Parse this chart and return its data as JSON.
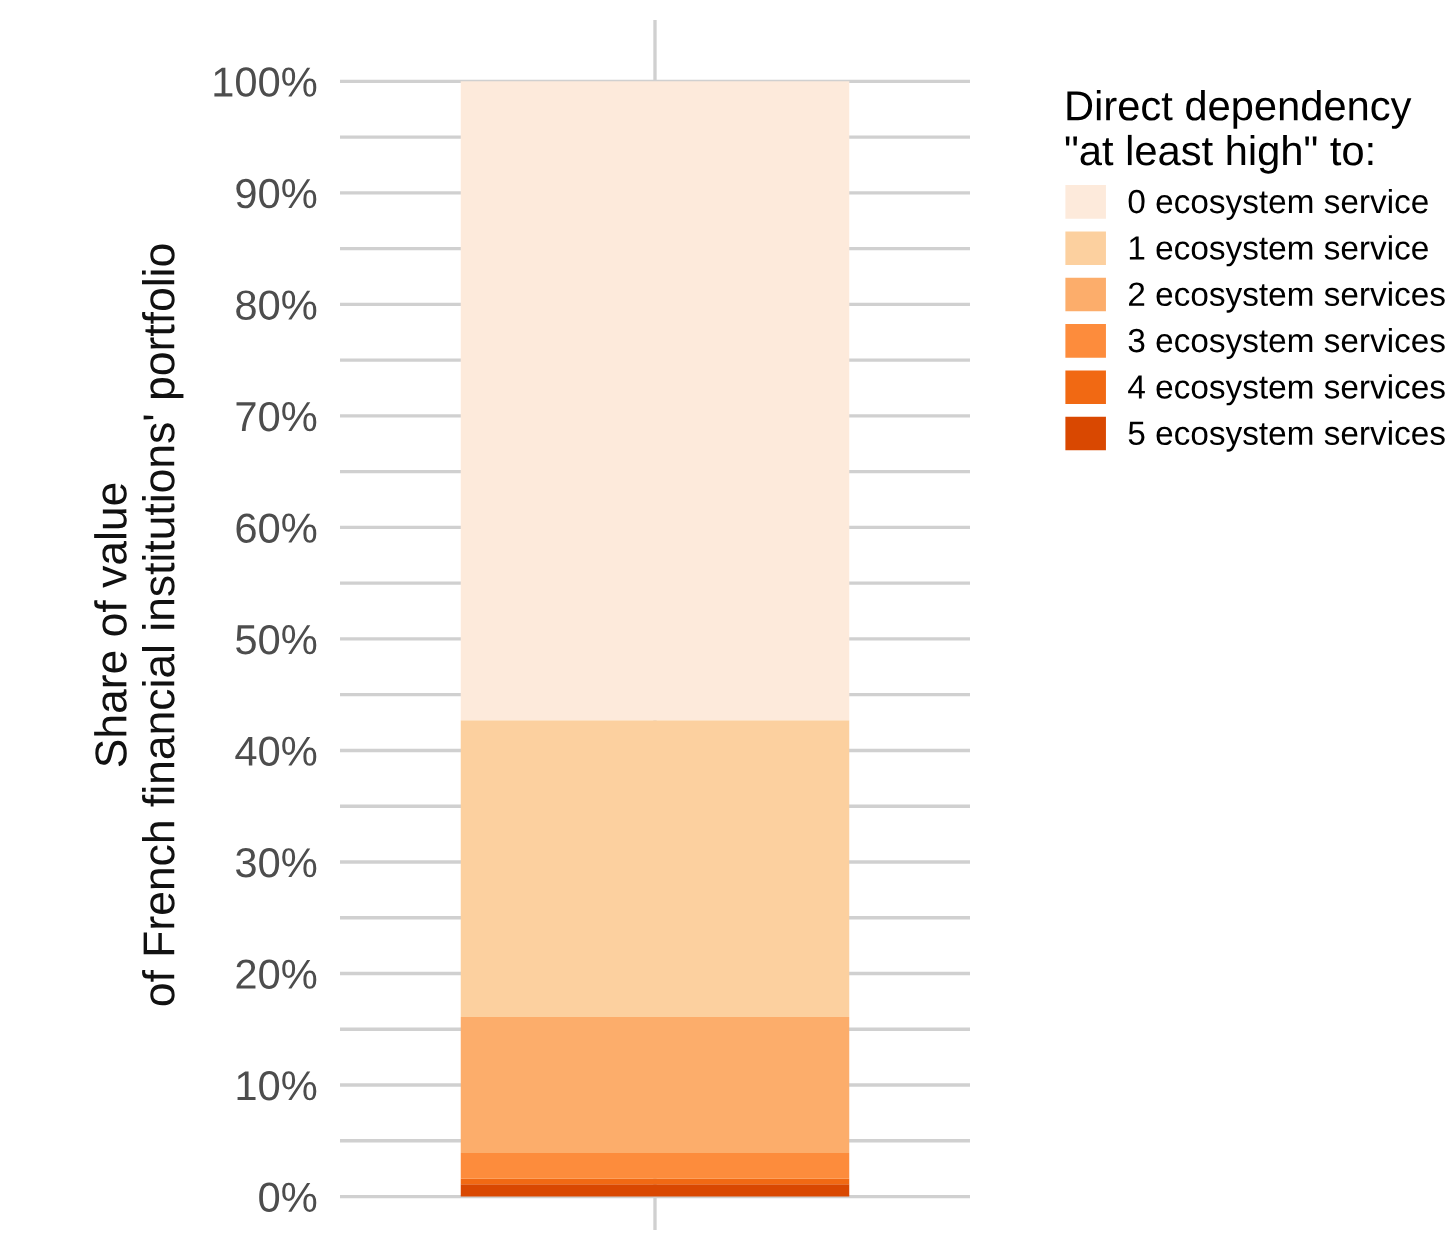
{
  "chart_data": {
    "type": "bar",
    "stacked": true,
    "categories": [
      null
    ],
    "ylabel": "Share of value\nof French financial institutions' portfolio",
    "legend_title": "Direct dependency\n\"at least high\" to:",
    "series": [
      {
        "name": "5 ecosystem services",
        "color": "#d94801",
        "values": [
          1.1
        ]
      },
      {
        "name": "4 ecosystem services",
        "color": "#f16913",
        "values": [
          0.5
        ]
      },
      {
        "name": "3 ecosystem services",
        "color": "#fd8c3c",
        "values": [
          2.3
        ]
      },
      {
        "name": "2 ecosystem services",
        "color": "#fcad6b",
        "values": [
          12.2
        ]
      },
      {
        "name": "1 ecosystem service",
        "color": "#fcd09f",
        "values": [
          26.6
        ]
      },
      {
        "name": "0 ecosystem service",
        "color": "#fdeadb",
        "values": [
          57.3
        ]
      }
    ],
    "ylim": [
      -3,
      105.5
    ],
    "yticks": [
      {
        "value": 0,
        "label": "0%"
      },
      {
        "value": 5,
        "label": null
      },
      {
        "value": 10,
        "label": "10%"
      },
      {
        "value": 15,
        "label": null
      },
      {
        "value": 20,
        "label": "20%"
      },
      {
        "value": 25,
        "label": null
      },
      {
        "value": 30,
        "label": "30%"
      },
      {
        "value": 35,
        "label": null
      },
      {
        "value": 40,
        "label": "40%"
      },
      {
        "value": 45,
        "label": null
      },
      {
        "value": 50,
        "label": "50%"
      },
      {
        "value": 55,
        "label": null
      },
      {
        "value": 60,
        "label": "60%"
      },
      {
        "value": 65,
        "label": null
      },
      {
        "value": 70,
        "label": "70%"
      },
      {
        "value": 75,
        "label": null
      },
      {
        "value": 80,
        "label": "80%"
      },
      {
        "value": 85,
        "label": null
      },
      {
        "value": 90,
        "label": "90%"
      },
      {
        "value": 95,
        "label": null
      },
      {
        "value": 100,
        "label": "100%"
      }
    ],
    "grid": true,
    "legend": "top right"
  }
}
